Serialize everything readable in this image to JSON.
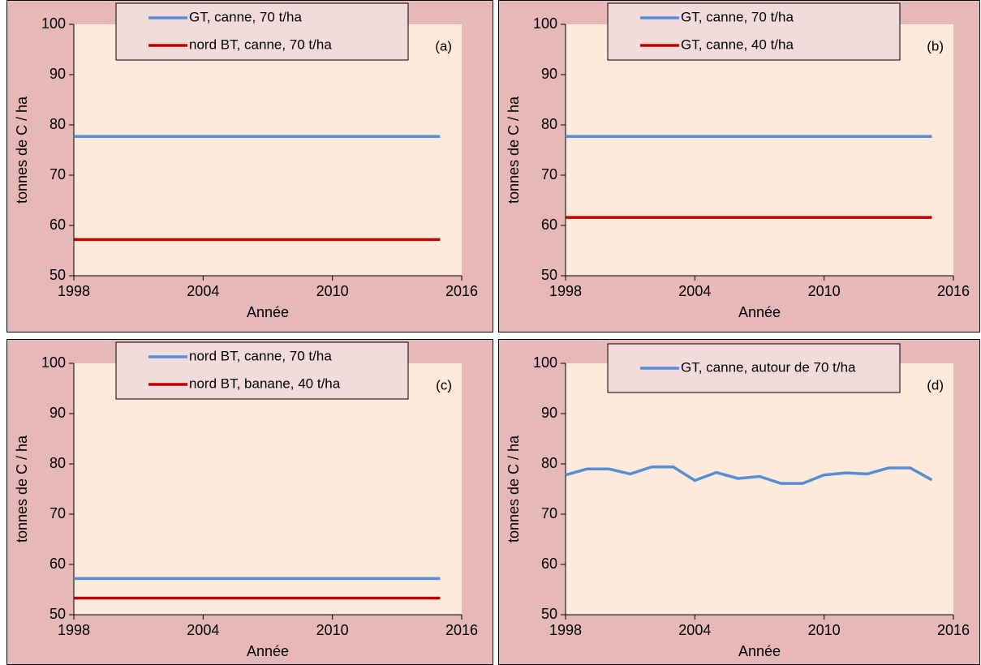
{
  "chart_data": [
    {
      "type": "line",
      "annotation": "(a)",
      "xlabel": "Année",
      "ylabel": "tonnes de C / ha",
      "x": [
        1998,
        1999,
        2000,
        2001,
        2002,
        2003,
        2004,
        2005,
        2006,
        2007,
        2008,
        2009,
        2010,
        2011,
        2012,
        2013,
        2014,
        2015
      ],
      "series": [
        {
          "name": "GT, canne, 70 t/ha",
          "color": "#558ed5",
          "values": [
            77.7,
            77.7,
            77.7,
            77.7,
            77.7,
            77.7,
            77.7,
            77.7,
            77.7,
            77.7,
            77.7,
            77.7,
            77.7,
            77.7,
            77.7,
            77.7,
            77.7,
            77.7
          ]
        },
        {
          "name": "nord BT, canne, 70 t/ha",
          "color": "#c00000",
          "values": [
            57.2,
            57.2,
            57.2,
            57.2,
            57.2,
            57.2,
            57.2,
            57.2,
            57.2,
            57.2,
            57.2,
            57.2,
            57.2,
            57.2,
            57.2,
            57.2,
            57.2,
            57.2
          ]
        }
      ],
      "xlim": [
        1998,
        2016
      ],
      "xticks": [
        1998,
        2004,
        2010,
        2016
      ],
      "ylim": [
        50,
        100
      ],
      "yticks": [
        50,
        60,
        70,
        80,
        90,
        100
      ]
    },
    {
      "type": "line",
      "annotation": "(b)",
      "xlabel": "Année",
      "ylabel": "tonnes de C / ha",
      "x": [
        1998,
        1999,
        2000,
        2001,
        2002,
        2003,
        2004,
        2005,
        2006,
        2007,
        2008,
        2009,
        2010,
        2011,
        2012,
        2013,
        2014,
        2015
      ],
      "series": [
        {
          "name": "GT, canne, 70 t/ha",
          "color": "#558ed5",
          "values": [
            77.7,
            77.7,
            77.7,
            77.7,
            77.7,
            77.7,
            77.7,
            77.7,
            77.7,
            77.7,
            77.7,
            77.7,
            77.7,
            77.7,
            77.7,
            77.7,
            77.7,
            77.7
          ]
        },
        {
          "name": "GT, canne, 40 t/ha",
          "color": "#c00000",
          "values": [
            61.6,
            61.6,
            61.6,
            61.6,
            61.6,
            61.6,
            61.6,
            61.6,
            61.6,
            61.6,
            61.6,
            61.6,
            61.6,
            61.6,
            61.6,
            61.6,
            61.6,
            61.6
          ]
        }
      ],
      "xlim": [
        1998,
        2016
      ],
      "xticks": [
        1998,
        2004,
        2010,
        2016
      ],
      "ylim": [
        50,
        100
      ],
      "yticks": [
        50,
        60,
        70,
        80,
        90,
        100
      ]
    },
    {
      "type": "line",
      "annotation": "(c)",
      "xlabel": "Année",
      "ylabel": "tonnes de C / ha",
      "x": [
        1998,
        1999,
        2000,
        2001,
        2002,
        2003,
        2004,
        2005,
        2006,
        2007,
        2008,
        2009,
        2010,
        2011,
        2012,
        2013,
        2014,
        2015
      ],
      "series": [
        {
          "name": "nord BT, canne, 70 t/ha",
          "color": "#558ed5",
          "values": [
            57.2,
            57.2,
            57.2,
            57.2,
            57.2,
            57.2,
            57.2,
            57.2,
            57.2,
            57.2,
            57.2,
            57.2,
            57.2,
            57.2,
            57.2,
            57.2,
            57.2,
            57.2
          ]
        },
        {
          "name": "nord BT, banane, 40 t/ha",
          "color": "#c00000",
          "values": [
            53.3,
            53.3,
            53.3,
            53.3,
            53.3,
            53.3,
            53.3,
            53.3,
            53.3,
            53.3,
            53.3,
            53.3,
            53.3,
            53.3,
            53.3,
            53.3,
            53.3,
            53.3
          ]
        }
      ],
      "xlim": [
        1998,
        2016
      ],
      "xticks": [
        1998,
        2004,
        2010,
        2016
      ],
      "ylim": [
        50,
        100
      ],
      "yticks": [
        50,
        60,
        70,
        80,
        90,
        100
      ]
    },
    {
      "type": "line",
      "annotation": "(d)",
      "xlabel": "Année",
      "ylabel": "tonnes de C / ha",
      "x": [
        1998,
        1999,
        2000,
        2001,
        2002,
        2003,
        2004,
        2005,
        2006,
        2007,
        2008,
        2009,
        2010,
        2011,
        2012,
        2013,
        2014,
        2015
      ],
      "series": [
        {
          "name": "GT, canne, autour de 70 t/ha",
          "color": "#558ed5",
          "values": [
            77.8,
            79,
            79,
            78,
            79.4,
            79.4,
            76.7,
            78.3,
            77.1,
            77.5,
            76.1,
            76.1,
            77.8,
            78.2,
            78,
            79.2,
            79.2,
            76.8
          ]
        }
      ],
      "xlim": [
        1998,
        2016
      ],
      "xticks": [
        1998,
        2004,
        2010,
        2016
      ],
      "ylim": [
        50,
        100
      ],
      "yticks": [
        50,
        60,
        70,
        80,
        90,
        100
      ]
    }
  ]
}
